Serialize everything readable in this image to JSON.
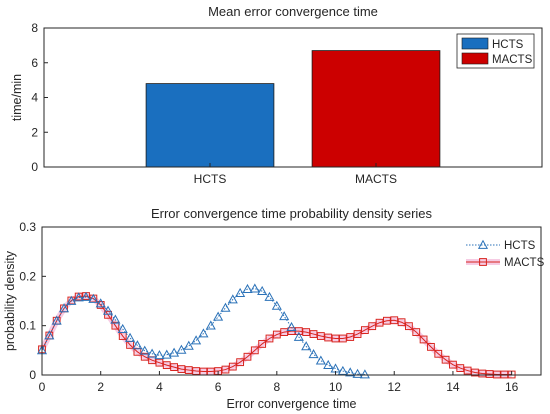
{
  "chart_data": [
    {
      "type": "bar",
      "title": "Mean error convergence time",
      "xlabel": "",
      "ylabel": "time/min",
      "categories": [
        "HCTS",
        "MACTS"
      ],
      "values": [
        4.8,
        6.7
      ],
      "colors": [
        "#1a6fbf",
        "#cc0000"
      ],
      "ylim": [
        0,
        8
      ],
      "yticks": [
        0,
        2,
        4,
        6,
        8
      ],
      "xlim": [
        0,
        3
      ],
      "grid": false,
      "legend": {
        "position": "top-right",
        "entries": [
          "HCTS",
          "MACTS"
        ]
      }
    },
    {
      "type": "line",
      "title": "Error convergence time probability density series",
      "xlabel": "Error convergence time",
      "ylabel": "probability density",
      "xlim": [
        0,
        17
      ],
      "ylim": [
        0,
        0.3
      ],
      "xticks": [
        0,
        2,
        4,
        6,
        8,
        10,
        12,
        14,
        16
      ],
      "yticks": [
        0,
        0.1,
        0.2,
        0.3
      ],
      "grid": false,
      "legend": {
        "position": "top-right"
      },
      "series": [
        {
          "name": "HCTS",
          "color": "#2b72b8",
          "marker": "triangle",
          "x": [
            0,
            0.25,
            0.5,
            0.75,
            1,
            1.25,
            1.5,
            1.75,
            2,
            2.25,
            2.5,
            2.75,
            3,
            3.25,
            3.5,
            3.75,
            4,
            4.25,
            4.5,
            4.75,
            5,
            5.25,
            5.5,
            5.75,
            6,
            6.25,
            6.5,
            6.75,
            7,
            7.25,
            7.5,
            7.75,
            8,
            8.25,
            8.5,
            8.75,
            9,
            9.25,
            9.5,
            9.75,
            10,
            10.25,
            10.5,
            10.75,
            11
          ],
          "y": [
            0.05,
            0.08,
            0.11,
            0.135,
            0.15,
            0.157,
            0.158,
            0.154,
            0.145,
            0.13,
            0.112,
            0.093,
            0.075,
            0.06,
            0.049,
            0.043,
            0.04,
            0.041,
            0.045,
            0.051,
            0.059,
            0.07,
            0.084,
            0.1,
            0.118,
            0.136,
            0.153,
            0.166,
            0.174,
            0.175,
            0.17,
            0.158,
            0.14,
            0.119,
            0.097,
            0.077,
            0.058,
            0.042,
            0.029,
            0.02,
            0.013,
            0.008,
            0.005,
            0.002,
            0.001
          ]
        },
        {
          "name": "MACTS",
          "color": "#d8241f",
          "marker": "square",
          "x": [
            0,
            0.25,
            0.5,
            0.75,
            1,
            1.25,
            1.5,
            1.75,
            2,
            2.25,
            2.5,
            2.75,
            3,
            3.25,
            3.5,
            3.75,
            4,
            4.25,
            4.5,
            4.75,
            5,
            5.25,
            5.5,
            5.75,
            6,
            6.25,
            6.5,
            6.75,
            7,
            7.25,
            7.5,
            7.75,
            8,
            8.25,
            8.5,
            8.75,
            9,
            9.25,
            9.5,
            9.75,
            10,
            10.25,
            10.5,
            10.75,
            11,
            11.25,
            11.5,
            11.75,
            12,
            12.25,
            12.5,
            12.75,
            13,
            13.25,
            13.5,
            13.75,
            14,
            14.25,
            14.5,
            14.75,
            15,
            15.25,
            15.5,
            15.75,
            16
          ],
          "y": [
            0.052,
            0.08,
            0.11,
            0.135,
            0.151,
            0.159,
            0.16,
            0.155,
            0.142,
            0.122,
            0.1,
            0.079,
            0.061,
            0.047,
            0.037,
            0.03,
            0.025,
            0.02,
            0.016,
            0.012,
            0.01,
            0.008,
            0.007,
            0.007,
            0.008,
            0.011,
            0.017,
            0.026,
            0.037,
            0.05,
            0.063,
            0.074,
            0.082,
            0.087,
            0.089,
            0.089,
            0.087,
            0.083,
            0.079,
            0.076,
            0.074,
            0.074,
            0.077,
            0.083,
            0.091,
            0.099,
            0.106,
            0.11,
            0.111,
            0.107,
            0.099,
            0.087,
            0.072,
            0.057,
            0.043,
            0.031,
            0.021,
            0.014,
            0.009,
            0.005,
            0.003,
            0.002,
            0.001,
            0.001,
            0.001
          ]
        }
      ]
    }
  ]
}
